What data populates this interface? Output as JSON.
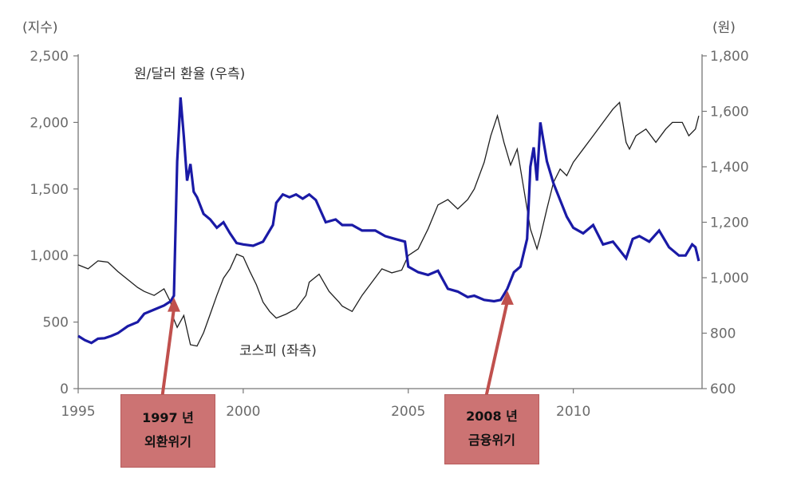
{
  "chart_data": {
    "type": "line",
    "left_axis_unit": "(지수)",
    "right_axis_unit": "(원)",
    "y_left_ticks": [
      "2,500",
      "2,000",
      "1,500",
      "1,000",
      "500",
      "0"
    ],
    "y_left_range": [
      0,
      2500
    ],
    "y_right_ticks": [
      "1,800",
      "1,600",
      "1,400",
      "1,200",
      "1,000",
      "800",
      "600"
    ],
    "y_right_range": [
      600,
      1800
    ],
    "x_ticks": [
      "1995",
      "2000",
      "2005",
      "2010"
    ],
    "x_range": [
      1995,
      2013.9
    ],
    "grid": false,
    "series": [
      {
        "name": "원/달러 환율 (우측)",
        "axis": "right",
        "color": "#1a1aa6",
        "x": [
          1995.0,
          1995.2,
          1995.4,
          1995.6,
          1995.8,
          1996.0,
          1996.2,
          1996.5,
          1996.8,
          1997.0,
          1997.3,
          1997.6,
          1997.8,
          1997.9,
          1998.0,
          1998.05,
          1998.1,
          1998.2,
          1998.3,
          1998.4,
          1998.5,
          1998.6,
          1998.8,
          1999.0,
          1999.2,
          1999.4,
          1999.6,
          1999.8,
          2000.0,
          2000.3,
          2000.6,
          2000.9,
          2001.0,
          2001.2,
          2001.4,
          2001.6,
          2001.8,
          2002.0,
          2002.2,
          2002.5,
          2002.8,
          2003.0,
          2003.3,
          2003.6,
          2004.0,
          2004.3,
          2004.6,
          2004.9,
          2005.0,
          2005.3,
          2005.6,
          2005.9,
          2006.2,
          2006.5,
          2006.8,
          2007.0,
          2007.3,
          2007.6,
          2007.8,
          2008.0,
          2008.2,
          2008.4,
          2008.6,
          2008.7,
          2008.8,
          2008.9,
          2009.0,
          2009.2,
          2009.4,
          2009.6,
          2009.8,
          2010.0,
          2010.3,
          2010.6,
          2010.9,
          2011.2,
          2011.4,
          2011.6,
          2011.8,
          2012.0,
          2012.3,
          2012.6,
          2012.9,
          2013.0,
          2013.2,
          2013.4,
          2013.6,
          2013.7,
          2013.8
        ],
        "values": [
          790,
          775,
          765,
          780,
          782,
          790,
          800,
          825,
          840,
          870,
          885,
          900,
          915,
          935,
          1420,
          1530,
          1650,
          1510,
          1350,
          1410,
          1310,
          1290,
          1230,
          1210,
          1180,
          1200,
          1160,
          1125,
          1120,
          1115,
          1130,
          1190,
          1270,
          1300,
          1290,
          1300,
          1285,
          1300,
          1280,
          1200,
          1210,
          1190,
          1190,
          1170,
          1170,
          1150,
          1140,
          1130,
          1040,
          1020,
          1010,
          1025,
          960,
          950,
          930,
          935,
          920,
          915,
          920,
          960,
          1020,
          1040,
          1140,
          1400,
          1470,
          1350,
          1560,
          1420,
          1340,
          1280,
          1220,
          1180,
          1160,
          1190,
          1120,
          1130,
          1100,
          1070,
          1140,
          1150,
          1130,
          1170,
          1110,
          1100,
          1080,
          1080,
          1120,
          1110,
          1060
        ]
      },
      {
        "name": "코스피 (좌측)",
        "axis": "left",
        "color": "#1f1f1f",
        "x": [
          1995.0,
          1995.3,
          1995.6,
          1995.9,
          1996.2,
          1996.5,
          1996.8,
          1997.0,
          1997.3,
          1997.6,
          1997.8,
          1997.9,
          1998.0,
          1998.2,
          1998.4,
          1998.6,
          1998.8,
          1999.0,
          1999.2,
          1999.4,
          1999.6,
          1999.8,
          2000.0,
          2000.2,
          2000.4,
          2000.6,
          2000.8,
          2001.0,
          2001.3,
          2001.6,
          2001.9,
          2002.0,
          2002.3,
          2002.6,
          2002.9,
          2003.0,
          2003.3,
          2003.6,
          2003.9,
          2004.2,
          2004.5,
          2004.8,
          2005.0,
          2005.3,
          2005.6,
          2005.9,
          2006.2,
          2006.5,
          2006.8,
          2007.0,
          2007.3,
          2007.5,
          2007.7,
          2007.9,
          2008.1,
          2008.3,
          2008.5,
          2008.7,
          2008.9,
          2009.0,
          2009.2,
          2009.4,
          2009.6,
          2009.8,
          2010.0,
          2010.3,
          2010.6,
          2010.9,
          2011.2,
          2011.4,
          2011.6,
          2011.7,
          2011.9,
          2012.2,
          2012.5,
          2012.8,
          2013.0,
          2013.3,
          2013.5,
          2013.7,
          2013.8
        ],
        "values": [
          930,
          900,
          960,
          950,
          880,
          820,
          760,
          730,
          700,
          750,
          650,
          520,
          460,
          550,
          330,
          320,
          420,
          560,
          700,
          830,
          900,
          1010,
          990,
          880,
          780,
          650,
          580,
          530,
          560,
          600,
          700,
          800,
          860,
          730,
          650,
          620,
          580,
          700,
          800,
          900,
          870,
          890,
          1000,
          1050,
          1200,
          1380,
          1420,
          1350,
          1420,
          1500,
          1700,
          1900,
          2050,
          1850,
          1680,
          1800,
          1500,
          1200,
          1050,
          1140,
          1350,
          1550,
          1650,
          1600,
          1700,
          1800,
          1900,
          2000,
          2100,
          2150,
          1850,
          1800,
          1900,
          1950,
          1850,
          1950,
          2000,
          2000,
          1900,
          1950,
          2050
        ]
      }
    ],
    "annotations": [
      {
        "label": "원/달러 환율 (우측)"
      },
      {
        "label": "코스피 (좌측)"
      }
    ],
    "callouts": [
      {
        "line1": "1997 년",
        "line2": "외환위기",
        "x": 1997.9
      },
      {
        "line1": "2008 년",
        "line2": "금융위기",
        "x": 2008.0
      }
    ]
  },
  "colors": {
    "axis": "#6b6b6b",
    "fx_line": "#1a1aa6",
    "kospi_line": "#1f1f1f",
    "callout_fill": "#cc7373",
    "arrow": "#c0504d"
  }
}
